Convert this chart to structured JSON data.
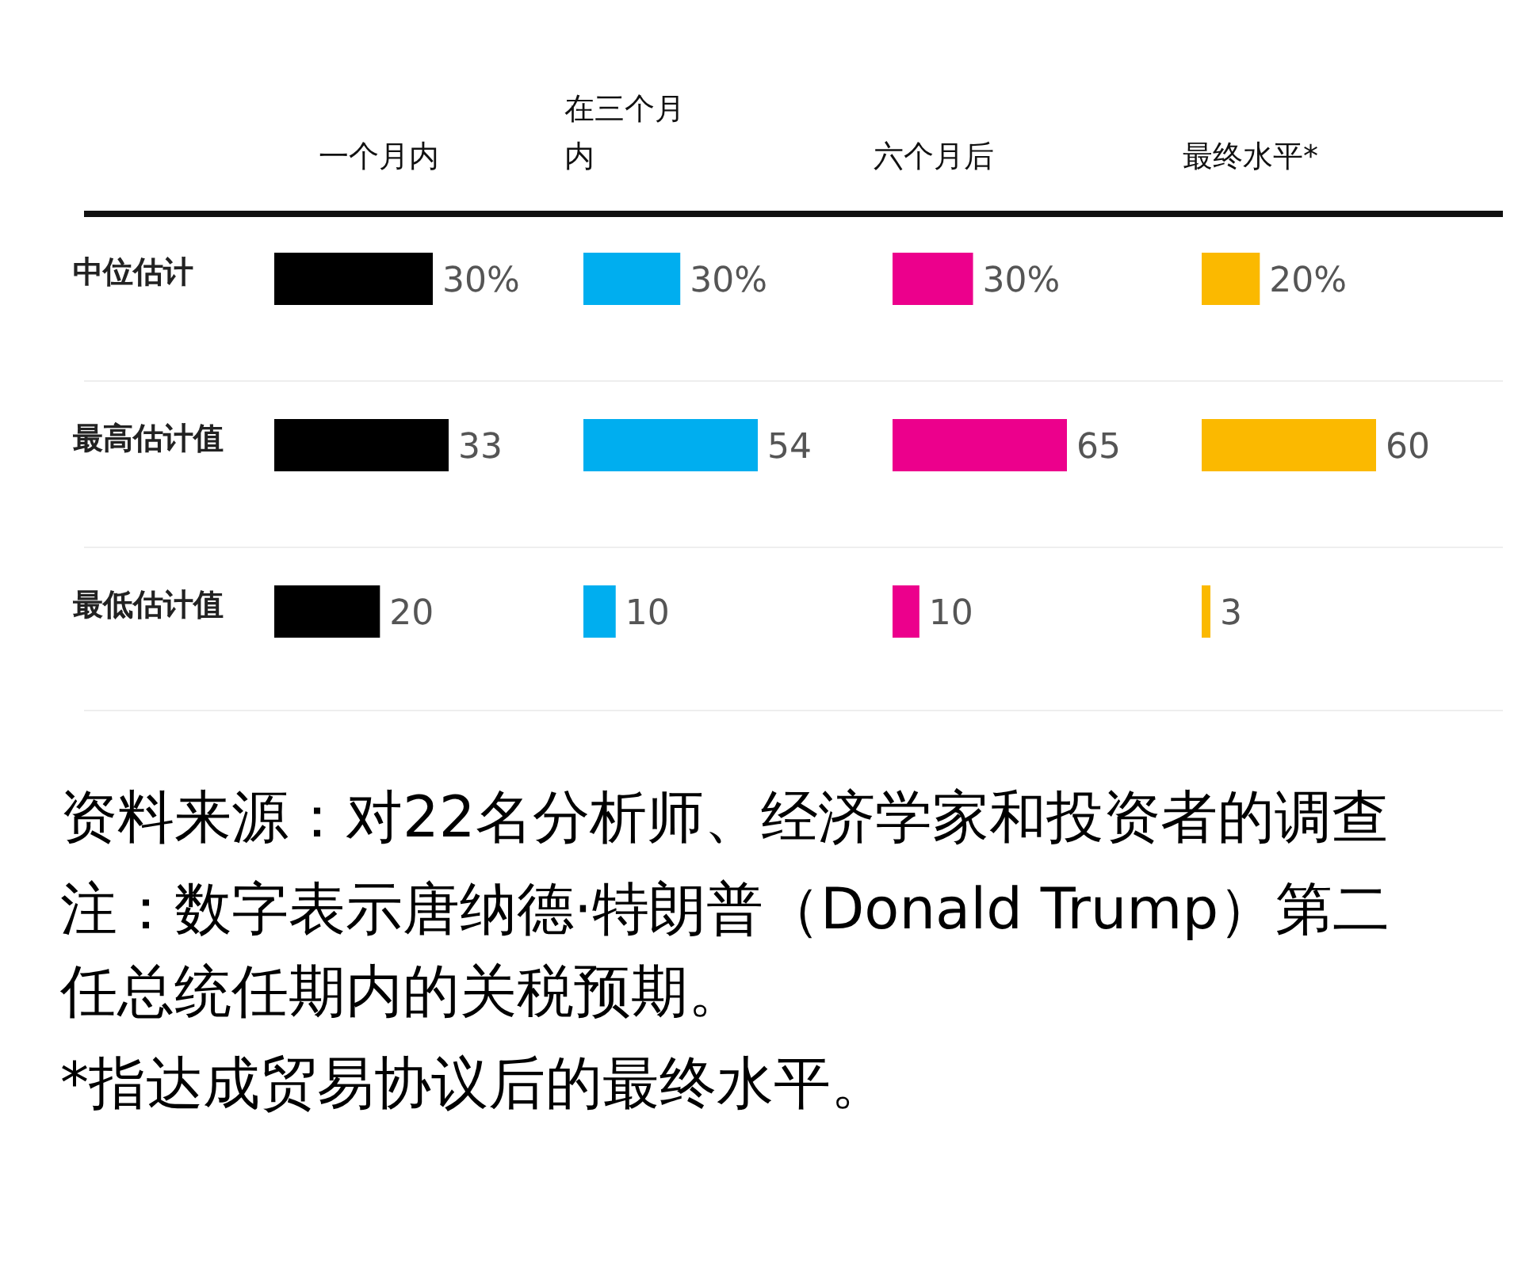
{
  "chart_data": [
    {
      "type": "bar",
      "orientation": "horizontal",
      "title": "一个月内",
      "categories": [
        "中位估计",
        "最高估计值",
        "最低估计值"
      ],
      "values": [
        30,
        33,
        20
      ],
      "value_labels": [
        "30%",
        "33",
        "20"
      ],
      "color": "#000000",
      "annotations": [
        "资料来源：对22名分析师、经济学家和投资者的调查",
        "注：数字表示唐纳德·特朗普（Donald Trump）第二任总统任期内的关税预期。",
        "*指达成贸易协议后的最终水平。"
      ]
    },
    {
      "type": "bar",
      "orientation": "horizontal",
      "title": "在三个月内",
      "categories": [
        null,
        null,
        null
      ],
      "values": [
        30,
        54,
        10
      ],
      "value_labels": [
        "30%",
        "54",
        "10"
      ],
      "color": "#00aeef"
    },
    {
      "type": "bar",
      "orientation": "horizontal",
      "title": "六个月后",
      "categories": [
        null,
        null,
        null
      ],
      "values": [
        30,
        65,
        10
      ],
      "value_labels": [
        "30%",
        "65",
        "10"
      ],
      "color": "#ec008c"
    },
    {
      "type": "bar",
      "orientation": "horizontal",
      "title": "最终水平*",
      "categories": [
        null,
        null,
        null
      ],
      "values": [
        20,
        60,
        3
      ],
      "value_labels": [
        "20%",
        "60",
        "3"
      ],
      "color": "#fbb900"
    }
  ]
}
